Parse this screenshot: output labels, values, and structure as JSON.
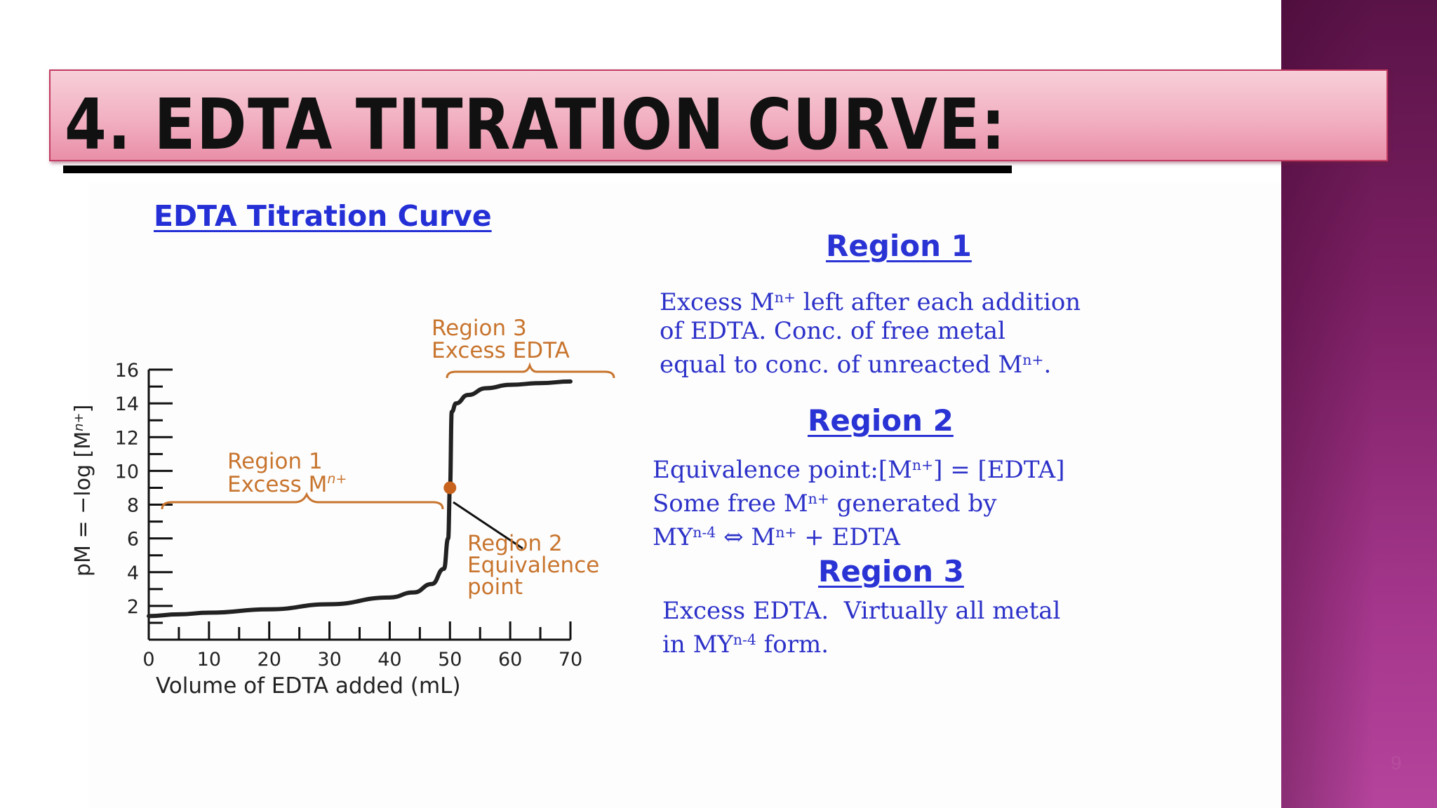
{
  "slide": {
    "title": "4. EDTA TITRATION CURVE:",
    "page_number": "9",
    "colors": {
      "title_bar": "#f2b0c2",
      "side_band": "#7b1f63",
      "heading_blue": "#2a33d4",
      "annotation_orange": "#c8752e"
    }
  },
  "chart_data": {
    "type": "line",
    "title": "EDTA Titration Curve",
    "xlabel": "Volume of EDTA added (mL)",
    "ylabel": "pM = −log [M",
    "ylabel_sup": "n+",
    "ylabel_end": "]",
    "xlim": [
      0,
      70
    ],
    "ylim": [
      0,
      16
    ],
    "xticks": [
      0,
      10,
      20,
      30,
      40,
      50,
      60,
      70
    ],
    "yticks": [
      2,
      4,
      6,
      8,
      10,
      12,
      14,
      16
    ],
    "series": [
      {
        "x": [
          0,
          5,
          10,
          20,
          30,
          40,
          44,
          47,
          49,
          49.7,
          50,
          50.3,
          51,
          53,
          56,
          60,
          65,
          70
        ],
        "y": [
          1.4,
          1.5,
          1.6,
          1.8,
          2.1,
          2.5,
          2.8,
          3.3,
          4.2,
          6.0,
          9.0,
          13.5,
          14.0,
          14.5,
          14.9,
          15.1,
          15.2,
          15.3
        ]
      }
    ],
    "equivalence_point": {
      "x": 50,
      "y": 9
    },
    "annotations": {
      "region1": [
        "Region 1",
        "Excess M"
      ],
      "region1_sup": "n+",
      "region2": [
        "Region 2",
        "Equivalence",
        "point"
      ],
      "region3": [
        "Region 3",
        "Excess EDTA"
      ]
    }
  },
  "regions": {
    "r1": {
      "heading": "Region 1",
      "line1_a": "Excess M",
      "line1_sup": "n+",
      "line1_b": " left after each addition",
      "line2": "of EDTA. Conc. of free metal",
      "line3_a": "equal to conc. of unreacted M",
      "line3_sup": "n+",
      "line3_b": "."
    },
    "r2": {
      "heading": "Region 2",
      "line1_a": "Equivalence point:[M",
      "line1_sup": "n+",
      "line1_b": "] = [EDTA]",
      "line2_a": "Some free M",
      "line2_sup": "n+",
      "line2_b": " generated by",
      "line3_a": "MY",
      "line3_sup1": "n-4",
      "line3_b": " ⇔ M",
      "line3_sup2": "n+",
      "line3_c": " + EDTA"
    },
    "r3": {
      "heading": "Region 3",
      "line1": "Excess EDTA.  Virtually all metal",
      "line2_a": "in MY",
      "line2_sup": "n-4",
      "line2_b": " form."
    }
  }
}
